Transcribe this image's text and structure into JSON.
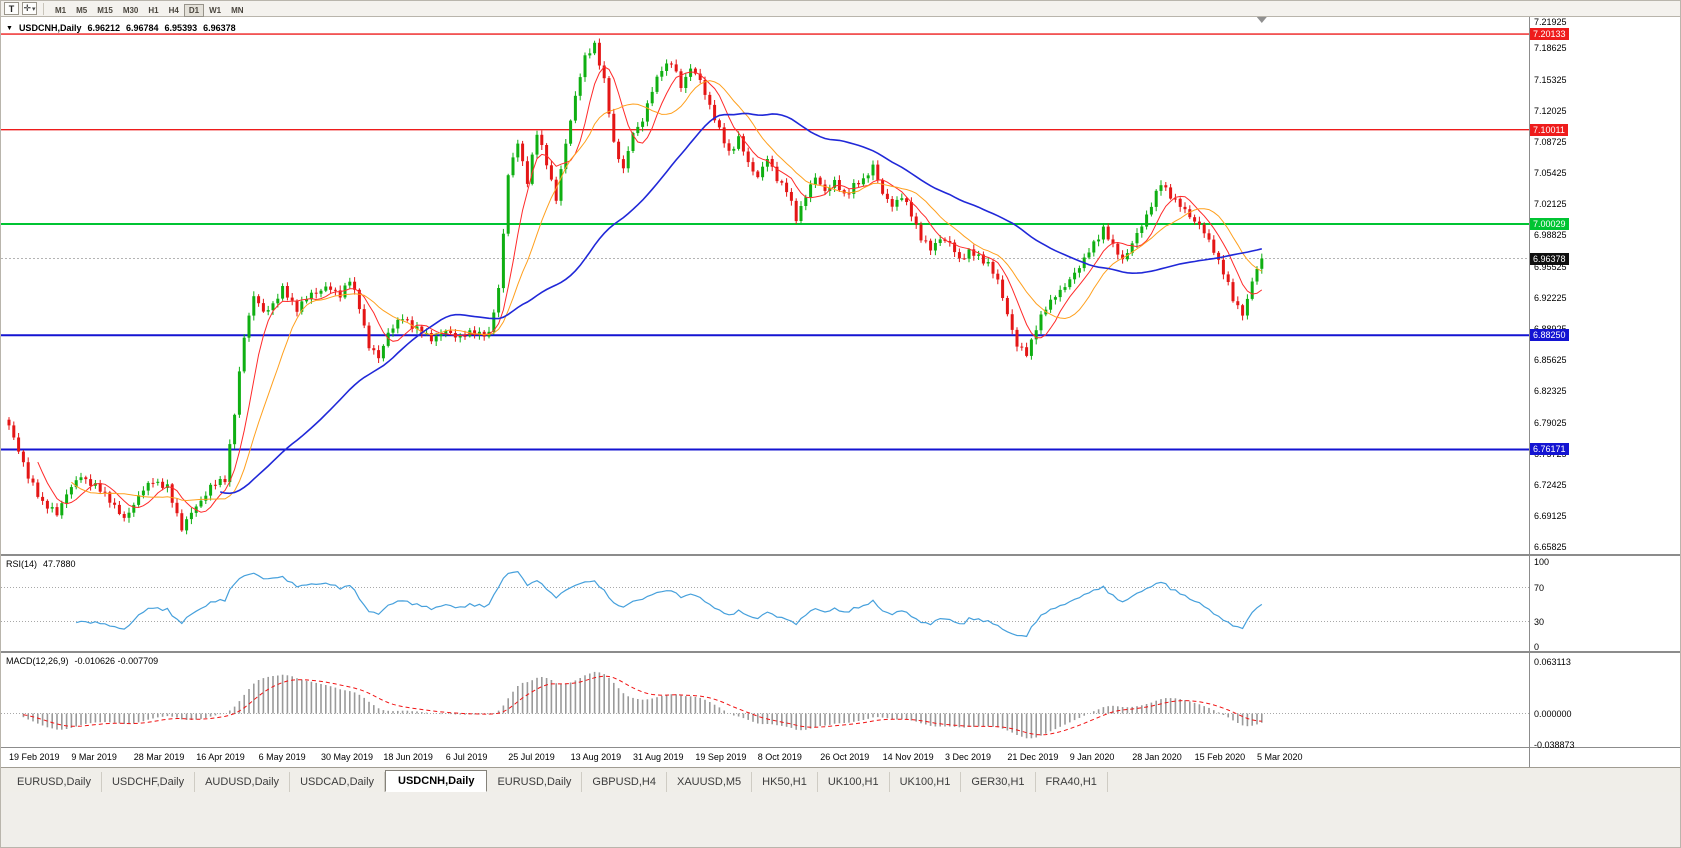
{
  "toolbar": {
    "t_button_label": "T",
    "crosshair_icon": "✛",
    "pointer_tool_caret": "▾",
    "timeframes": [
      "M1",
      "M5",
      "M15",
      "M30",
      "H1",
      "H4",
      "D1",
      "W1",
      "MN"
    ],
    "active_timeframe": "D1"
  },
  "symbol_header": {
    "caret": "▼",
    "symbol": "USDCNH,Daily",
    "open": "6.96212",
    "high": "6.96784",
    "low": "6.95393",
    "close": "6.96378"
  },
  "price_axis_ticks": [
    "7.21925",
    "7.18625",
    "7.15325",
    "7.12025",
    "7.08725",
    "7.05425",
    "7.02125",
    "6.98825",
    "6.95525",
    "6.92225",
    "6.88925",
    "6.85625",
    "6.82325",
    "6.79025",
    "6.75725",
    "6.72425",
    "6.69125",
    "6.65825"
  ],
  "level_badges": [
    {
      "label": "7.20133",
      "value": 7.20133,
      "color": "#ee1c1c",
      "line_width": 1.4
    },
    {
      "label": "7.10011",
      "value": 7.10011,
      "color": "#ee1c1c",
      "line_width": 1.4
    },
    {
      "label": "7.00029",
      "value": 7.00029,
      "color": "#00c432",
      "line_width": 2
    },
    {
      "label": "6.88250",
      "value": 6.8825,
      "color": "#1414d2",
      "line_width": 2
    },
    {
      "label": "6.76171",
      "value": 6.76171,
      "color": "#1414d2",
      "line_width": 2
    }
  ],
  "current_price": {
    "label": "6.96378",
    "value": 6.96378,
    "badge_color": "#101010",
    "line_color": "#b4b4b4"
  },
  "rsi_panel": {
    "name": "RSI(14)",
    "value": "47.7880",
    "axis_labels": [
      {
        "text": "100",
        "v": 100
      },
      {
        "text": "70",
        "v": 70
      },
      {
        "text": "30",
        "v": 30
      },
      {
        "text": "0",
        "v": 0
      }
    ],
    "guide_levels": [
      70,
      30
    ],
    "line_color": "#46a0dc"
  },
  "macd_panel": {
    "name": "MACD(12,26,9)",
    "values": "-0.010626 -0.007709",
    "axis_labels": [
      {
        "text": "0.063113",
        "v": 0.063113
      },
      {
        "text": "0.000000",
        "v": 0
      },
      {
        "text": "-0.038873",
        "v": -0.038873
      }
    ],
    "histogram_color": "#9a9a9a",
    "signal_color": "#f01414"
  },
  "date_axis": [
    "19 Feb 2019",
    "9 Mar 2019",
    "28 Mar 2019",
    "16 Apr 2019",
    "6 May 2019",
    "30 May 2019",
    "18 Jun 2019",
    "6 Jul 2019",
    "25 Jul 2019",
    "13 Aug 2019",
    "31 Aug 2019",
    "19 Sep 2019",
    "8 Oct 2019",
    "26 Oct 2019",
    "14 Nov 2019",
    "3 Dec 2019",
    "21 Dec 2019",
    "9 Jan 2020",
    "28 Jan 2020",
    "15 Feb 2020",
    "5 Mar 2020"
  ],
  "tabs": {
    "active_index": 4,
    "items": [
      "EURUSD,Daily",
      "USDCHF,Daily",
      "AUDUSD,Daily",
      "USDCAD,Daily",
      "USDCNH,Daily",
      "EURUSD,Daily",
      "GBPUSD,H4",
      "XAUUSD,M5",
      "HK50,H1",
      "UK100,H1",
      "UK100,H1",
      "GER30,H1",
      "FRA40,H1"
    ]
  },
  "chart_data": {
    "type": "candlestick",
    "symbol": "USDCNH",
    "timeframe": "D1",
    "bars": 262,
    "bars_per_date_label": 13,
    "price_range": {
      "top": 7.2194,
      "bottom": 6.6511
    },
    "last_close": 6.96378,
    "bull_color": "#0faf12",
    "bear_color": "#e41616",
    "h_levels": [
      7.20133,
      7.10011,
      7.00029,
      6.8825,
      6.76171
    ],
    "moving_averages": [
      {
        "period": 7,
        "color": "#ff2a2a",
        "width": 1
      },
      {
        "period": 14,
        "color": "#ffa01e",
        "width": 1
      },
      {
        "period": 45,
        "color": "#2028d8",
        "width": 1.6
      }
    ],
    "indicators": {
      "rsi": {
        "period": 14,
        "current": 47.788
      },
      "macd": {
        "fast": 12,
        "slow": 26,
        "signal": 9,
        "current_macd": -0.010626,
        "current_signal": -0.007709,
        "axis_max": 0.063113,
        "axis_min": -0.038873
      }
    },
    "close_anchors": [
      [
        0,
        6.786
      ],
      [
        2,
        6.762
      ],
      [
        4,
        6.732
      ],
      [
        7,
        6.706
      ],
      [
        10,
        6.693
      ],
      [
        12,
        6.716
      ],
      [
        15,
        6.733
      ],
      [
        18,
        6.723
      ],
      [
        21,
        6.709
      ],
      [
        24,
        6.687
      ],
      [
        27,
        6.713
      ],
      [
        30,
        6.729
      ],
      [
        33,
        6.721
      ],
      [
        36,
        6.679
      ],
      [
        38,
        6.694
      ],
      [
        40,
        6.708
      ],
      [
        42,
        6.722
      ],
      [
        45,
        6.731
      ],
      [
        47,
        6.8
      ],
      [
        49,
        6.882
      ],
      [
        51,
        6.925
      ],
      [
        53,
        6.906
      ],
      [
        55,
        6.916
      ],
      [
        57,
        6.931
      ],
      [
        60,
        6.911
      ],
      [
        63,
        6.926
      ],
      [
        66,
        6.933
      ],
      [
        69,
        6.926
      ],
      [
        71,
        6.941
      ],
      [
        73,
        6.913
      ],
      [
        75,
        6.871
      ],
      [
        77,
        6.858
      ],
      [
        79,
        6.886
      ],
      [
        82,
        6.901
      ],
      [
        85,
        6.889
      ],
      [
        88,
        6.879
      ],
      [
        91,
        6.886
      ],
      [
        94,
        6.881
      ],
      [
        97,
        6.886
      ],
      [
        100,
        6.883
      ],
      [
        102,
        6.932
      ],
      [
        104,
        7.052
      ],
      [
        106,
        7.086
      ],
      [
        108,
        7.046
      ],
      [
        110,
        7.096
      ],
      [
        112,
        7.066
      ],
      [
        114,
        7.026
      ],
      [
        116,
        7.086
      ],
      [
        118,
        7.136
      ],
      [
        120,
        7.176
      ],
      [
        122,
        7.191
      ],
      [
        124,
        7.151
      ],
      [
        126,
        7.086
      ],
      [
        128,
        7.058
      ],
      [
        130,
        7.096
      ],
      [
        132,
        7.111
      ],
      [
        134,
        7.141
      ],
      [
        136,
        7.166
      ],
      [
        138,
        7.171
      ],
      [
        140,
        7.146
      ],
      [
        142,
        7.166
      ],
      [
        144,
        7.151
      ],
      [
        146,
        7.126
      ],
      [
        148,
        7.099
      ],
      [
        150,
        7.076
      ],
      [
        152,
        7.091
      ],
      [
        154,
        7.064
      ],
      [
        156,
        7.051
      ],
      [
        158,
        7.069
      ],
      [
        160,
        7.049
      ],
      [
        162,
        7.036
      ],
      [
        164,
        7.006
      ],
      [
        166,
        7.031
      ],
      [
        168,
        7.049
      ],
      [
        170,
        7.036
      ],
      [
        172,
        7.044
      ],
      [
        174,
        7.031
      ],
      [
        176,
        7.041
      ],
      [
        178,
        7.046
      ],
      [
        180,
        7.063
      ],
      [
        182,
        7.031
      ],
      [
        184,
        7.021
      ],
      [
        186,
        7.029
      ],
      [
        188,
        7.011
      ],
      [
        190,
        6.986
      ],
      [
        192,
        6.973
      ],
      [
        194,
        6.986
      ],
      [
        196,
        6.979
      ],
      [
        198,
        6.963
      ],
      [
        200,
        6.971
      ],
      [
        202,
        6.965
      ],
      [
        204,
        6.959
      ],
      [
        206,
        6.939
      ],
      [
        208,
        6.906
      ],
      [
        210,
        6.871
      ],
      [
        212,
        6.863
      ],
      [
        214,
        6.891
      ],
      [
        216,
        6.911
      ],
      [
        218,
        6.926
      ],
      [
        220,
        6.933
      ],
      [
        222,
        6.949
      ],
      [
        224,
        6.963
      ],
      [
        226,
        6.979
      ],
      [
        228,
        6.996
      ],
      [
        230,
        6.976
      ],
      [
        232,
        6.963
      ],
      [
        234,
        6.979
      ],
      [
        236,
        6.999
      ],
      [
        238,
        7.021
      ],
      [
        240,
        7.043
      ],
      [
        242,
        7.031
      ],
      [
        244,
        7.019
      ],
      [
        246,
        7.009
      ],
      [
        248,
        6.999
      ],
      [
        251,
        6.973
      ],
      [
        253,
        6.949
      ],
      [
        255,
        6.921
      ],
      [
        257,
        6.906
      ],
      [
        258,
        6.919
      ],
      [
        259,
        6.939
      ],
      [
        260,
        6.953
      ],
      [
        261,
        6.96378
      ]
    ]
  }
}
